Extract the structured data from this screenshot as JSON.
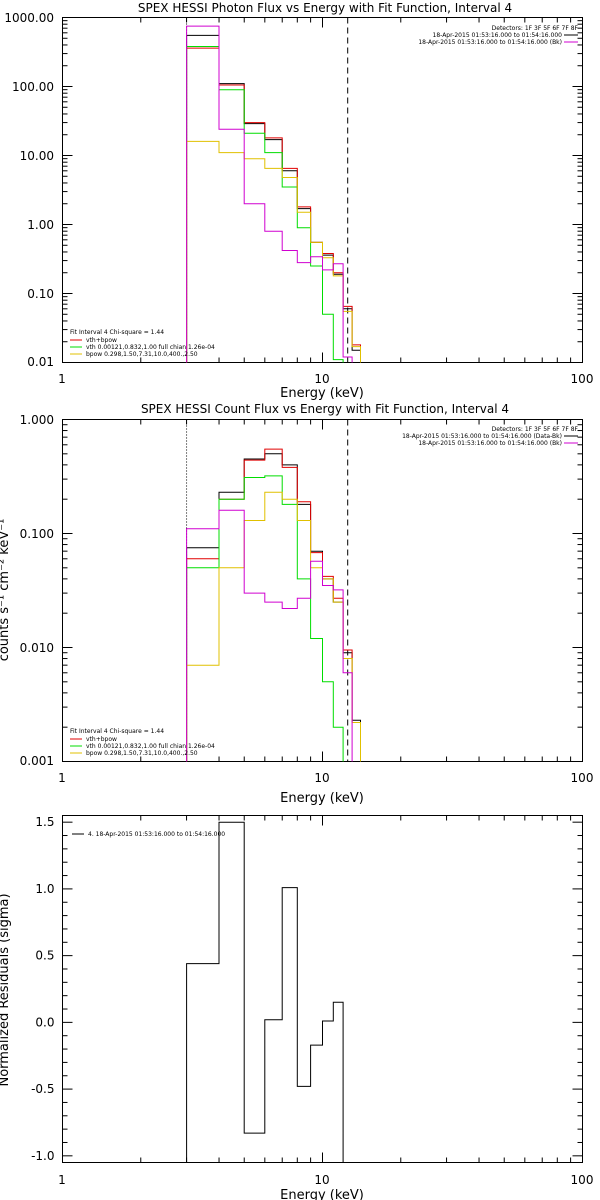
{
  "colors": {
    "data": "#000000",
    "model_total": "#e00000",
    "vth": "#00dd00",
    "bpow": "#e0c000",
    "background": "#d000d0"
  },
  "chart_data": [
    {
      "type": "line",
      "title": "SPEX HESSI Photon Flux vs Energy with Fit Function, Interval 4",
      "xlabel": "Energy (keV)",
      "ylabel": "",
      "x_scale": "log",
      "y_scale": "log",
      "xlim": [
        1,
        100
      ],
      "ylim": [
        0.01,
        1000
      ],
      "x_ticks": [
        "1",
        "10",
        "100"
      ],
      "y_ticks": [
        "1000.00",
        "100.00",
        "10.00",
        "1.00",
        "0.10",
        "0.01"
      ],
      "grid": false,
      "vlines": [
        {
          "x": 3,
          "style": "dotted"
        },
        {
          "x": 12.5,
          "style": "dashed"
        }
      ],
      "x_edges": [
        3,
        4,
        5,
        6,
        7,
        8,
        9,
        10,
        11,
        12,
        13,
        14
      ],
      "series": [
        {
          "name": "data",
          "color_key": "data",
          "values": [
            550,
            110,
            29,
            17,
            6,
            1.7,
            0.55,
            0.36,
            0.19,
            0.06,
            0.015
          ]
        },
        {
          "name": "vth+bpow",
          "color_key": "model_total",
          "values": [
            360,
            105,
            30,
            18,
            6.5,
            1.8,
            0.55,
            0.38,
            0.2,
            0.065,
            0.018
          ]
        },
        {
          "name": "vth",
          "color_key": "vth",
          "values": [
            380,
            90,
            21,
            11,
            3.5,
            0.9,
            0.25,
            0.05,
            0.011,
            null,
            null
          ]
        },
        {
          "name": "bpow",
          "color_key": "bpow",
          "values": [
            16,
            11,
            9,
            6.5,
            4.8,
            1.5,
            0.55,
            0.33,
            0.18,
            0.055,
            0.017
          ]
        },
        {
          "name": "background",
          "color_key": "background",
          "values": [
            750,
            24,
            2,
            0.8,
            0.42,
            0.28,
            0.34,
            0.22,
            0.27,
            0.012,
            null
          ]
        }
      ],
      "legend": {
        "placement": "top-right",
        "entries": [
          "Detectors: 1F 3F 5F 6F 7F 8F",
          "18-Apr-2015 01:53:16.000 to 01:54:16.000",
          "18-Apr-2015 01:53:16.000 to 01:54:16.000 (Bk)"
        ]
      },
      "fit_legend": {
        "placement": "bottom-left",
        "lines": [
          "Fit Interval 4   Chi-square = 1.44",
          "vth+bpow",
          "vth 0.00121,0.832,1.00  full chian 1.26e-04",
          "bpow 0.298,1.50,7.31,10.0,400.,2.50"
        ]
      }
    },
    {
      "type": "line",
      "title": "SPEX HESSI Count Flux vs Energy with Fit Function, Interval 4",
      "xlabel": "Energy (keV)",
      "ylabel": "counts s⁻¹ cm⁻² keV⁻¹",
      "x_scale": "log",
      "y_scale": "log",
      "xlim": [
        1,
        100
      ],
      "ylim": [
        0.001,
        1
      ],
      "x_ticks": [
        "1",
        "10",
        "100"
      ],
      "y_ticks": [
        "1.000",
        "0.100",
        "0.010",
        "0.001"
      ],
      "grid": false,
      "vlines": [
        {
          "x": 3,
          "style": "dotted"
        },
        {
          "x": 12.5,
          "style": "dashed"
        }
      ],
      "x_edges": [
        3,
        4,
        5,
        6,
        7,
        8,
        9,
        10,
        11,
        12,
        13,
        14
      ],
      "series": [
        {
          "name": "data",
          "color_key": "data",
          "values": [
            0.075,
            0.23,
            0.45,
            0.5,
            0.4,
            0.18,
            0.07,
            0.04,
            0.025,
            0.009,
            0.0023
          ]
        },
        {
          "name": "vth+bpow",
          "color_key": "model_total",
          "values": [
            0.06,
            0.2,
            0.44,
            0.55,
            0.38,
            0.19,
            0.068,
            0.042,
            0.027,
            0.0095,
            0.0022
          ]
        },
        {
          "name": "vth",
          "color_key": "vth",
          "values": [
            0.05,
            0.2,
            0.31,
            0.32,
            0.18,
            0.04,
            0.012,
            0.005,
            0.002,
            null,
            null
          ]
        },
        {
          "name": "bpow",
          "color_key": "bpow",
          "values": [
            0.007,
            0.05,
            0.13,
            0.23,
            0.2,
            0.13,
            0.05,
            0.04,
            0.025,
            0.008,
            0.0022
          ]
        },
        {
          "name": "background",
          "color_key": "background",
          "values": [
            0.11,
            0.16,
            0.03,
            0.025,
            0.022,
            0.027,
            0.057,
            0.035,
            0.032,
            0.006,
            null
          ]
        }
      ],
      "legend": {
        "placement": "top-right",
        "entries": [
          "Detectors: 1F 3F 5F 6F 7F 8F",
          "18-Apr-2015 01:53:16.000 to 01:54:16.000 (Data-Bk)",
          "18-Apr-2015 01:53:16.000 to 01:54:16.000 (Bk)"
        ]
      },
      "fit_legend": {
        "placement": "bottom-left",
        "lines": [
          "Fit Interval 4   Chi-square = 1.44",
          "vth+bpow",
          "vth 0.00121,0.832,1.00  full chian 1.26e-04",
          "bpow 0.298,1.50,7.31,10.0,400.,2.50"
        ]
      }
    },
    {
      "type": "line",
      "title": "",
      "xlabel": "Energy (keV)",
      "ylabel": "Normalized Residuals (sigma)",
      "x_scale": "log",
      "y_scale": "linear",
      "xlim": [
        1,
        100
      ],
      "ylim": [
        -1.05,
        1.55
      ],
      "x_ticks": [
        "1",
        "10",
        "100"
      ],
      "y_ticks": [
        "1.5",
        "1.0",
        "0.5",
        "0.0",
        "-0.5",
        "-1.0"
      ],
      "grid": false,
      "x_edges": [
        3,
        4,
        5,
        6,
        7,
        8,
        9,
        10,
        11,
        12
      ],
      "series": [
        {
          "name": "residuals",
          "color_key": "data",
          "values": [
            0.44,
            1.5,
            -0.83,
            0.02,
            1.01,
            -0.48,
            -0.17,
            0.01,
            0.15
          ]
        }
      ],
      "legend": {
        "placement": "top-left",
        "entries": [
          "4. 18-Apr-2015 01:53:16.000 to 01:54:16.000"
        ]
      }
    }
  ]
}
